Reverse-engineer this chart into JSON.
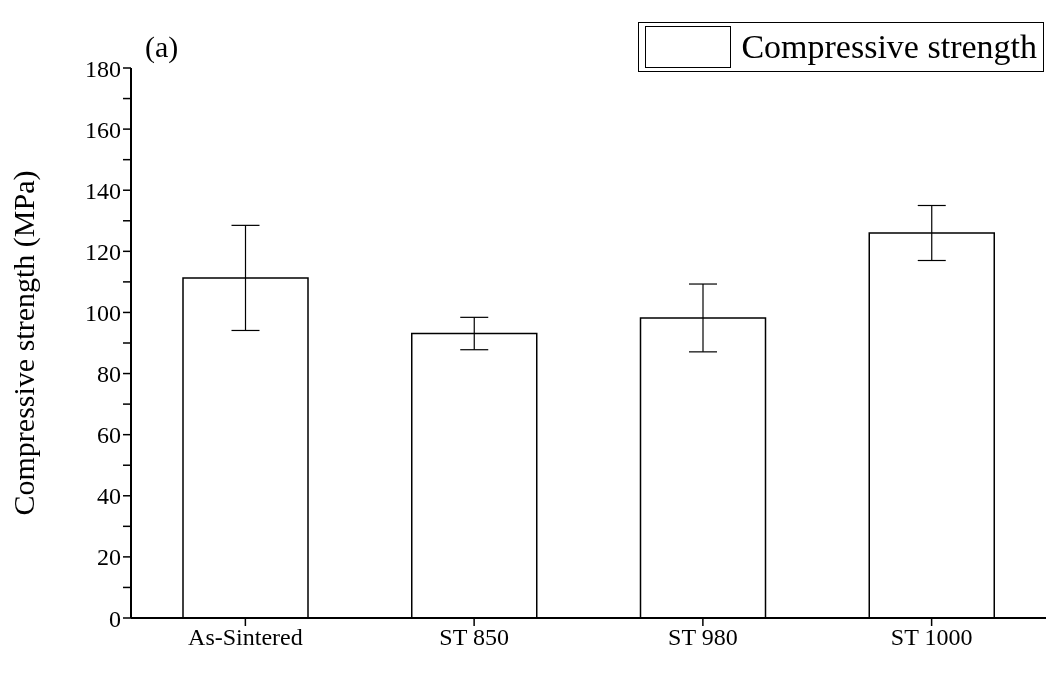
{
  "chart_data": {
    "type": "bar",
    "ylabel": "Compressive strength (MPa)",
    "categories": [
      "As-Sintered",
      "ST 850",
      "ST 980",
      "ST 1000"
    ],
    "series": [
      {
        "name": "Compressive strength",
        "color": "#ffffff",
        "values": [
          111.3,
          93.1,
          98.2,
          126.0
        ],
        "errors": [
          17.2,
          5.3,
          11.1,
          9.0
        ]
      }
    ],
    "ylim": [
      0,
      180
    ],
    "yticks": [
      0,
      {
        "value": 10,
        "label": null
      },
      20,
      {
        "value": 30,
        "label": null
      },
      40,
      {
        "value": 50,
        "label": null
      },
      60,
      {
        "value": 70,
        "label": null
      },
      80,
      {
        "value": 90,
        "label": null
      },
      100,
      {
        "value": 110,
        "label": null
      },
      120,
      {
        "value": 130,
        "label": null
      },
      140,
      {
        "value": 150,
        "label": null
      },
      160,
      {
        "value": 170,
        "label": null
      },
      180
    ],
    "legend": "top right",
    "annotations": [
      "(a)"
    ]
  }
}
